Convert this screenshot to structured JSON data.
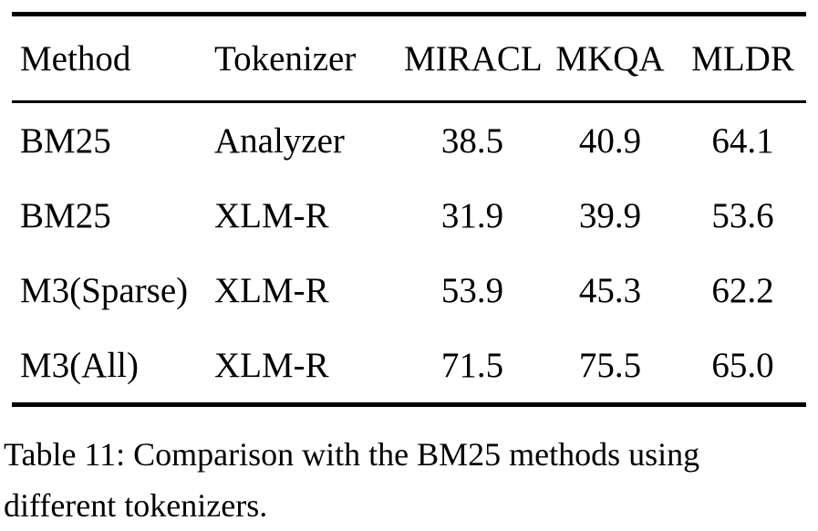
{
  "table": {
    "columns": [
      "Method",
      "Tokenizer",
      "MIRACL",
      "MKQA",
      "MLDR"
    ],
    "rows": [
      [
        "BM25",
        "Analyzer",
        "38.5",
        "40.9",
        "64.1"
      ],
      [
        "BM25",
        "XLM-R",
        "31.9",
        "39.9",
        "53.6"
      ],
      [
        "M3(Sparse)",
        "XLM-R",
        "53.9",
        "45.3",
        "62.2"
      ],
      [
        "M3(All)",
        "XLM-R",
        "71.5",
        "75.5",
        "65.0"
      ]
    ],
    "caption": "Table 11: Comparison with the BM25 methods using different tokenizers."
  },
  "chart_data": {
    "type": "table",
    "title": "Table 11: Comparison with the BM25 methods using different tokenizers.",
    "categories": [
      "MIRACL",
      "MKQA",
      "MLDR"
    ],
    "series": [
      {
        "name": "BM25 (Analyzer)",
        "values": [
          38.5,
          40.9,
          64.1
        ]
      },
      {
        "name": "BM25 (XLM-R)",
        "values": [
          31.9,
          39.9,
          53.6
        ]
      },
      {
        "name": "M3(Sparse) (XLM-R)",
        "values": [
          53.9,
          45.3,
          62.2
        ]
      },
      {
        "name": "M3(All) (XLM-R)",
        "values": [
          71.5,
          75.5,
          65.0
        ]
      }
    ]
  }
}
